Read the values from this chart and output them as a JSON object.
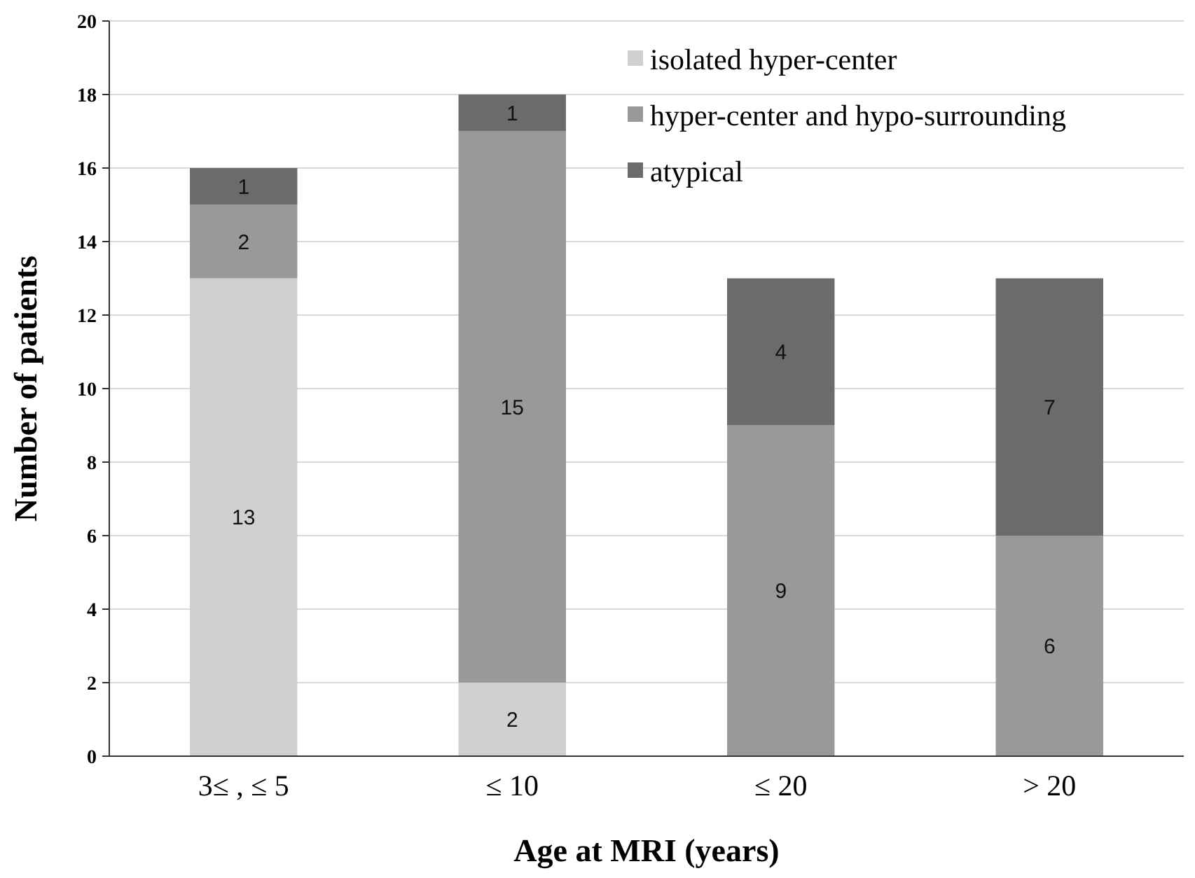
{
  "chart_data": {
    "type": "bar",
    "stacked": true,
    "xlabel": "Age at MRI (years)",
    "ylabel": "Number of patients",
    "categories": [
      "3≤ , ≤ 5",
      "≤ 10",
      "≤ 20",
      "> 20"
    ],
    "series": [
      {
        "name": "isolated hyper-center",
        "color": "#d0d0d0",
        "values": [
          13,
          2,
          0,
          0
        ],
        "value_labels": [
          "13",
          "2",
          null,
          null
        ]
      },
      {
        "name": "hyper-center and hypo-surrounding",
        "color": "#999999",
        "values": [
          2,
          15,
          9,
          6
        ],
        "value_labels": [
          "2",
          "15",
          "9",
          "6"
        ]
      },
      {
        "name": "atypical",
        "color": "#6b6b6b",
        "values": [
          1,
          1,
          4,
          7
        ],
        "value_labels": [
          "1",
          "1",
          "4",
          "7"
        ]
      }
    ],
    "ylim": [
      0,
      20
    ],
    "yticks": [
      0,
      2,
      4,
      6,
      8,
      10,
      12,
      14,
      16,
      18,
      20
    ],
    "grid": "y",
    "legend": "top right"
  }
}
